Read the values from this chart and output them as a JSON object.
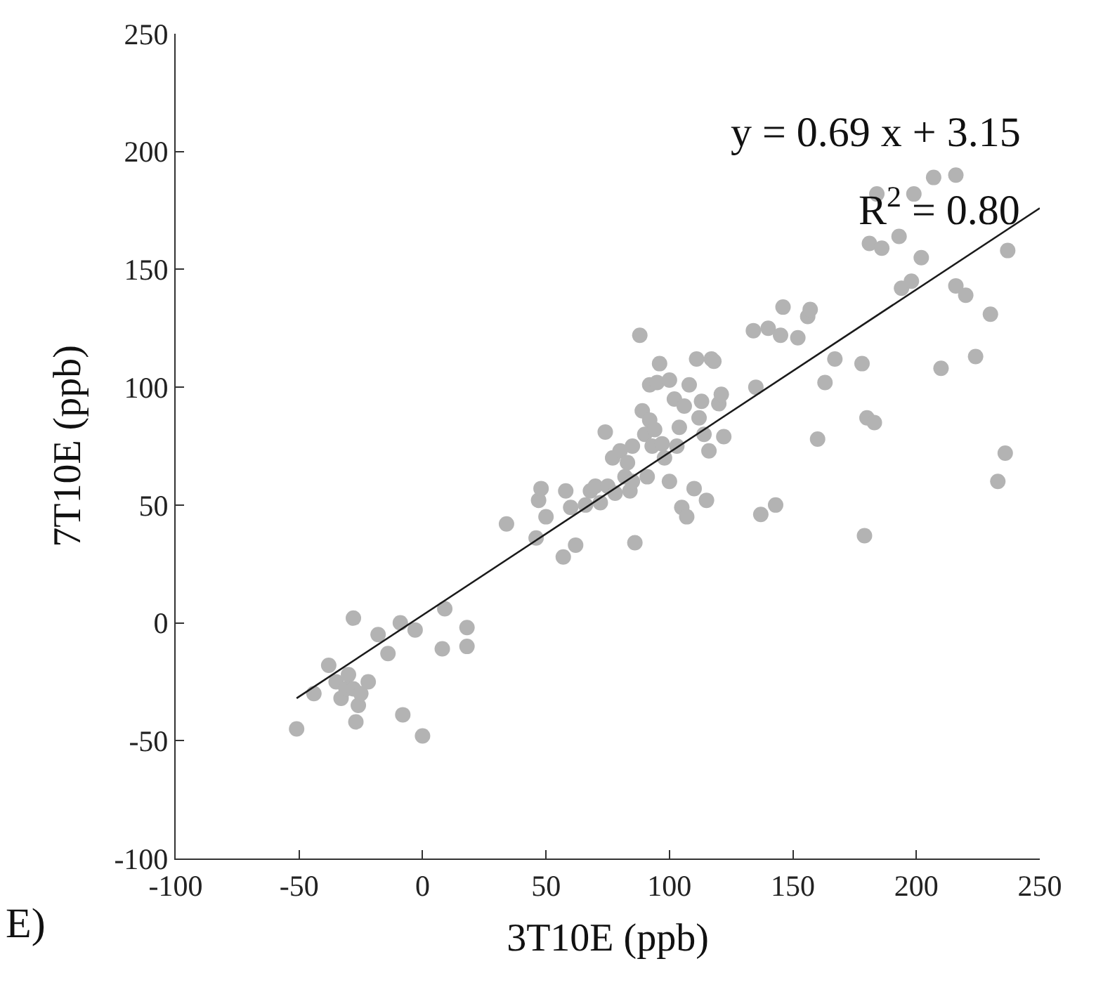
{
  "chart_data": {
    "type": "scatter",
    "xlabel": "3T10E (ppb)",
    "ylabel": "7T10E (ppb)",
    "xlim": [
      -100,
      250
    ],
    "ylim": [
      -100,
      250
    ],
    "xticks": [
      -100,
      -50,
      0,
      50,
      100,
      150,
      200,
      250
    ],
    "yticks": [
      -100,
      -50,
      0,
      50,
      100,
      150,
      200,
      250
    ],
    "marker": "circle",
    "annotations": [
      "y = 0.69 x + 3.15",
      "R$^{2}$ = 0.80",
      "E)"
    ],
    "series": [
      {
        "color": "#b3b3b3",
        "x": [
          -51,
          -44,
          -38,
          -35,
          -33,
          -31,
          -30,
          -28,
          -28,
          -27,
          -26,
          -25,
          -22,
          -18,
          -14,
          -9,
          -8,
          -3,
          0,
          8,
          9,
          18,
          18,
          34,
          46,
          47,
          48,
          50,
          57,
          58,
          60,
          62,
          66,
          68,
          70,
          72,
          74,
          75,
          77,
          78,
          80,
          82,
          83,
          84,
          85,
          85,
          86,
          88,
          89,
          90,
          91,
          92,
          92,
          93,
          94,
          95,
          96,
          97,
          98,
          100,
          100,
          102,
          103,
          104,
          105,
          106,
          107,
          108,
          110,
          111,
          112,
          113,
          114,
          115,
          116,
          117,
          118,
          120,
          121,
          122,
          134,
          135,
          137,
          140,
          143,
          145,
          146,
          152,
          156,
          157,
          160,
          163,
          167,
          178,
          179,
          180,
          181,
          183,
          184,
          186,
          193,
          194,
          198,
          199,
          202,
          207,
          210,
          216,
          216,
          220,
          224,
          230,
          233,
          236,
          237
        ],
        "values": [
          -45,
          -30,
          -18,
          -25,
          -32,
          -28,
          -22,
          -28,
          2,
          -42,
          -35,
          -30,
          -25,
          -5,
          -13,
          0,
          -39,
          -3,
          -48,
          -11,
          6,
          -2,
          -10,
          42,
          36,
          52,
          57,
          45,
          28,
          56,
          49,
          33,
          50,
          56,
          58,
          51,
          81,
          58,
          70,
          55,
          73,
          62,
          68,
          56,
          60,
          75,
          34,
          122,
          90,
          80,
          62,
          86,
          101,
          75,
          82,
          102,
          110,
          76,
          70,
          103,
          60,
          95,
          75,
          83,
          49,
          92,
          45,
          101,
          57,
          112,
          87,
          94,
          80,
          52,
          73,
          112,
          111,
          93,
          97,
          79,
          124,
          100,
          46,
          125,
          50,
          122,
          134,
          121,
          130,
          133,
          78,
          102,
          112,
          110,
          37,
          87,
          161,
          85,
          182,
          159,
          164,
          142,
          145,
          182,
          155,
          189,
          108,
          190,
          143,
          139,
          113,
          131,
          60,
          72,
          158
        ]
      },
      {
        "type": "line",
        "color": "#1a1a1a",
        "line_style": "solid",
        "marker": "none",
        "x": [
          -51,
          250
        ],
        "values": [
          -32,
          176
        ]
      }
    ]
  }
}
